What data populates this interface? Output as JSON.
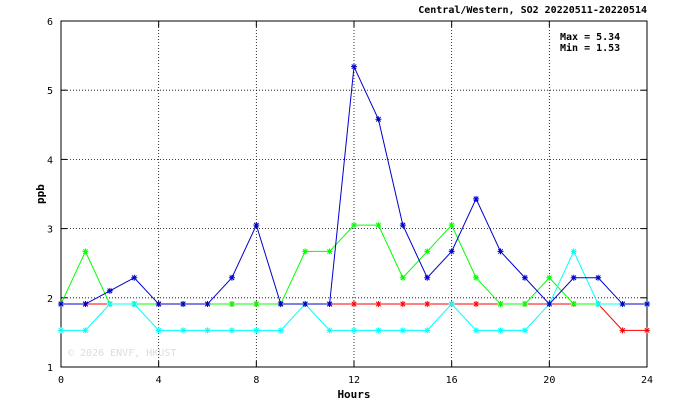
{
  "chart_data": {
    "type": "line",
    "title": "Central/Western, SO2 20220511-20220514",
    "xlabel": "Hours",
    "ylabel": "ppb",
    "xlim": [
      0,
      24
    ],
    "ylim": [
      1,
      6
    ],
    "xticks": [
      0,
      4,
      8,
      12,
      16,
      20,
      24
    ],
    "yticks": [
      1,
      2,
      3,
      4,
      5,
      6
    ],
    "grid": true,
    "annotations": {
      "max": "Max = 5.34",
      "min": "Min = 1.53"
    },
    "watermark": "© 2026  ENVF, HKUST",
    "x": [
      0,
      1,
      2,
      3,
      4,
      5,
      6,
      7,
      8,
      9,
      10,
      11,
      12,
      13,
      14,
      15,
      16,
      17,
      18,
      19,
      20,
      21,
      22,
      23,
      24
    ],
    "series": [
      {
        "color": "#ff0000",
        "values": [
          1.91,
          1.91,
          1.91,
          1.91,
          1.91,
          1.91,
          1.91,
          1.91,
          1.91,
          1.91,
          1.91,
          1.91,
          1.91,
          1.91,
          1.91,
          1.91,
          1.91,
          1.91,
          1.91,
          1.91,
          1.91,
          1.91,
          1.91,
          1.53,
          1.53
        ]
      },
      {
        "color": "#00ff00",
        "values": [
          1.91,
          2.67,
          1.91,
          1.91,
          1.91,
          1.91,
          1.91,
          1.91,
          1.91,
          1.91,
          2.67,
          2.67,
          3.05,
          3.05,
          2.29,
          2.67,
          3.05,
          2.29,
          1.91,
          1.91,
          2.29,
          1.91,
          1.91,
          1.91,
          1.91
        ]
      },
      {
        "color": "#00ffff",
        "values": [
          1.53,
          1.53,
          1.91,
          1.91,
          1.53,
          1.53,
          1.53,
          1.53,
          1.53,
          1.53,
          1.91,
          1.53,
          1.53,
          1.53,
          1.53,
          1.53,
          1.91,
          1.53,
          1.53,
          1.53,
          1.91,
          2.67,
          1.91,
          1.91,
          1.91
        ]
      },
      {
        "color": "#0000cc",
        "values": [
          1.91,
          1.91,
          2.1,
          2.29,
          1.91,
          1.91,
          1.91,
          2.29,
          3.05,
          1.91,
          1.91,
          1.91,
          5.34,
          4.58,
          3.05,
          2.29,
          2.67,
          3.43,
          2.67,
          2.29,
          1.91,
          2.29,
          2.29,
          1.91,
          1.91
        ]
      }
    ]
  }
}
